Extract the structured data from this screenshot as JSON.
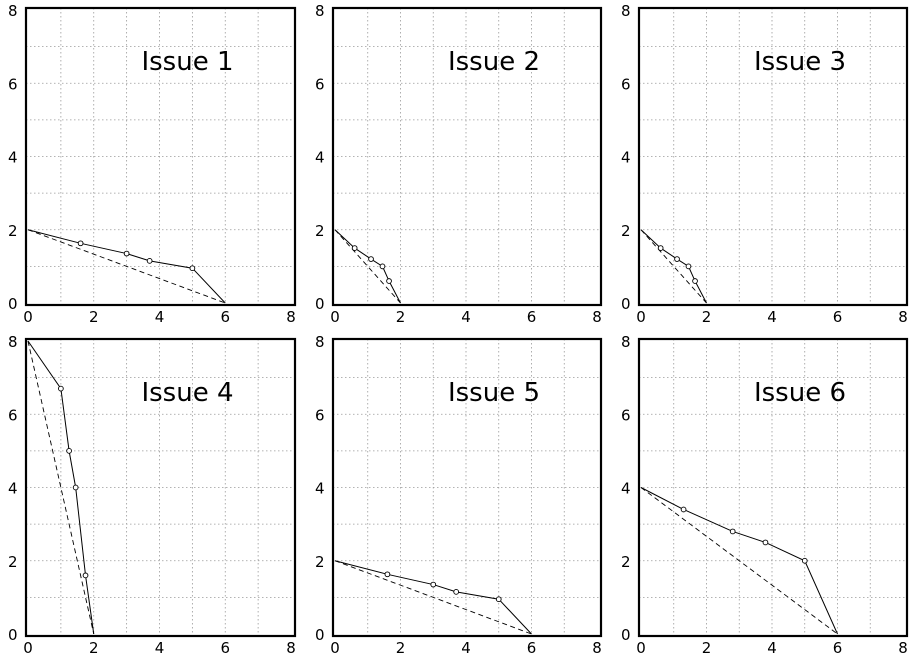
{
  "chart_data": [
    {
      "type": "line",
      "title": "Issue 1",
      "xlim": [
        0,
        8
      ],
      "ylim": [
        0,
        8
      ],
      "xticks": [
        0,
        2,
        4,
        6,
        8
      ],
      "yticks": [
        0,
        2,
        4,
        6,
        8
      ],
      "grid": true,
      "series": [
        {
          "style": "solid",
          "x": [
            0,
            1.6,
            3.0,
            3.7,
            5.0,
            6.0
          ],
          "y": [
            2.0,
            1.63,
            1.35,
            1.15,
            0.95,
            0
          ],
          "markers_x": [
            1.6,
            3.0,
            3.7,
            5.0
          ],
          "markers_y": [
            1.63,
            1.35,
            1.15,
            0.95
          ]
        },
        {
          "style": "dashed",
          "x": [
            0,
            6.0
          ],
          "y": [
            2.0,
            0
          ]
        }
      ]
    },
    {
      "type": "line",
      "title": "Issue 2",
      "xlim": [
        0,
        8
      ],
      "ylim": [
        0,
        8
      ],
      "xticks": [
        0,
        2,
        4,
        6,
        8
      ],
      "yticks": [
        0,
        2,
        4,
        6,
        8
      ],
      "grid": true,
      "series": [
        {
          "style": "solid",
          "x": [
            0,
            0.6,
            1.1,
            1.45,
            1.65,
            2.0
          ],
          "y": [
            2.0,
            1.5,
            1.2,
            1.0,
            0.6,
            0
          ],
          "markers_x": [
            0.6,
            1.1,
            1.45,
            1.65
          ],
          "markers_y": [
            1.5,
            1.2,
            1.0,
            0.6
          ]
        },
        {
          "style": "dashed",
          "x": [
            0,
            2.0
          ],
          "y": [
            2.0,
            0
          ]
        }
      ]
    },
    {
      "type": "line",
      "title": "Issue 3",
      "xlim": [
        0,
        8
      ],
      "ylim": [
        0,
        8
      ],
      "xticks": [
        0,
        2,
        4,
        6,
        8
      ],
      "yticks": [
        0,
        2,
        4,
        6,
        8
      ],
      "grid": true,
      "series": [
        {
          "style": "solid",
          "x": [
            0,
            0.6,
            1.1,
            1.45,
            1.65,
            2.0
          ],
          "y": [
            2.0,
            1.5,
            1.2,
            1.0,
            0.6,
            0
          ],
          "markers_x": [
            0.6,
            1.1,
            1.45,
            1.65
          ],
          "markers_y": [
            1.5,
            1.2,
            1.0,
            0.6
          ]
        },
        {
          "style": "dashed",
          "x": [
            0,
            2.0
          ],
          "y": [
            2.0,
            0
          ]
        }
      ]
    },
    {
      "type": "line",
      "title": "Issue 4",
      "xlim": [
        0,
        8
      ],
      "ylim": [
        0,
        8
      ],
      "xticks": [
        0,
        2,
        4,
        6,
        8
      ],
      "yticks": [
        0,
        2,
        4,
        6,
        8
      ],
      "grid": true,
      "series": [
        {
          "style": "solid",
          "x": [
            0,
            1.0,
            1.25,
            1.45,
            1.75,
            2.0
          ],
          "y": [
            8.0,
            6.7,
            5.0,
            4.0,
            1.6,
            0
          ],
          "markers_x": [
            1.0,
            1.25,
            1.45,
            1.75
          ],
          "markers_y": [
            6.7,
            5.0,
            4.0,
            1.6
          ]
        },
        {
          "style": "dashed",
          "x": [
            0,
            2.0
          ],
          "y": [
            8.0,
            0
          ]
        }
      ]
    },
    {
      "type": "line",
      "title": "Issue 5",
      "xlim": [
        0,
        8
      ],
      "ylim": [
        0,
        8
      ],
      "xticks": [
        0,
        2,
        4,
        6,
        8
      ],
      "yticks": [
        0,
        2,
        4,
        6,
        8
      ],
      "grid": true,
      "series": [
        {
          "style": "solid",
          "x": [
            0,
            1.6,
            3.0,
            3.7,
            5.0,
            6.0
          ],
          "y": [
            2.0,
            1.63,
            1.35,
            1.15,
            0.95,
            0
          ],
          "markers_x": [
            1.6,
            3.0,
            3.7,
            5.0
          ],
          "markers_y": [
            1.63,
            1.35,
            1.15,
            0.95
          ]
        },
        {
          "style": "dashed",
          "x": [
            0,
            6.0
          ],
          "y": [
            2.0,
            0
          ]
        }
      ]
    },
    {
      "type": "line",
      "title": "Issue 6",
      "xlim": [
        0,
        8
      ],
      "ylim": [
        0,
        8
      ],
      "xticks": [
        0,
        2,
        4,
        6,
        8
      ],
      "yticks": [
        0,
        2,
        4,
        6,
        8
      ],
      "grid": true,
      "series": [
        {
          "style": "solid",
          "x": [
            0,
            1.3,
            2.8,
            3.8,
            5.0,
            6.0
          ],
          "y": [
            4.0,
            3.4,
            2.8,
            2.5,
            2.0,
            0
          ],
          "markers_x": [
            1.3,
            2.8,
            3.8,
            5.0
          ],
          "markers_y": [
            3.4,
            2.8,
            2.5,
            2.0
          ]
        },
        {
          "style": "dashed",
          "x": [
            0,
            6.0
          ],
          "y": [
            4.0,
            0
          ]
        }
      ]
    }
  ]
}
